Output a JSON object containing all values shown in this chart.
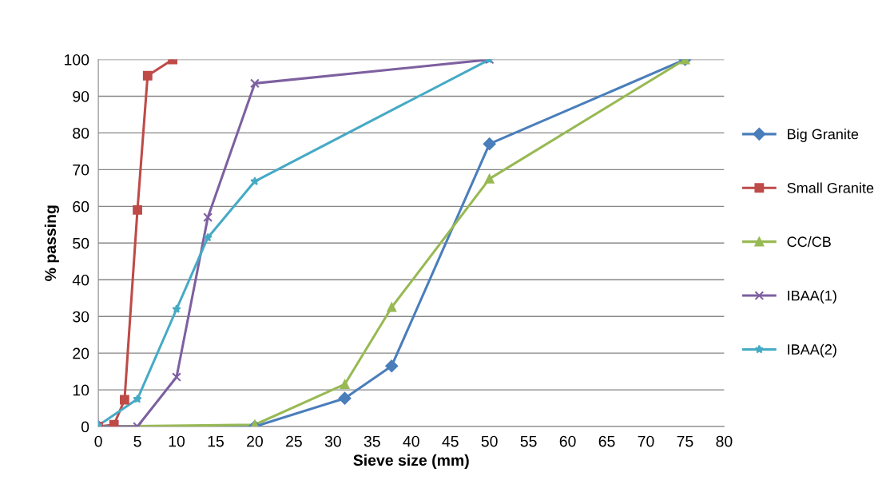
{
  "chart_data": {
    "type": "line",
    "xlabel": "Sieve size (mm)",
    "ylabel": "% passing",
    "xlim": [
      0,
      80
    ],
    "xticks": [
      0,
      5,
      10,
      15,
      20,
      25,
      30,
      35,
      40,
      45,
      50,
      55,
      60,
      65,
      70,
      75,
      80
    ],
    "ylim": [
      0,
      100
    ],
    "yticks": [
      0,
      10,
      20,
      30,
      40,
      50,
      60,
      70,
      80,
      90,
      100
    ],
    "grid": "y",
    "legend": "right",
    "series": [
      {
        "name": "Big Granite",
        "color": "#4a7ebb",
        "marker": "diamond",
        "x": [
          0,
          20,
          31.5,
          37.5,
          50,
          75
        ],
        "values": [
          0,
          0,
          7.7,
          16.5,
          77,
          100
        ]
      },
      {
        "name": "Small Granite",
        "color": "#be4b48",
        "marker": "square",
        "x": [
          0,
          2,
          3.35,
          5,
          6.3,
          9.5
        ],
        "values": [
          0,
          0.5,
          7.3,
          59,
          95.6,
          100
        ]
      },
      {
        "name": "CC/CB",
        "color": "#98b954",
        "marker": "triangle",
        "x": [
          0,
          20,
          31.5,
          37.5,
          50,
          75
        ],
        "values": [
          0,
          0.5,
          11.5,
          32.5,
          67.5,
          100
        ]
      },
      {
        "name": "IBAA(1)",
        "color": "#7d60a0",
        "marker": "cross",
        "x": [
          0,
          5,
          10,
          14,
          20,
          50
        ],
        "values": [
          0,
          0,
          13.5,
          57,
          93.5,
          100
        ]
      },
      {
        "name": "IBAA(2)",
        "color": "#46aac5",
        "marker": "star",
        "x": [
          0,
          5,
          10,
          14,
          20,
          50
        ],
        "values": [
          0.3,
          7.5,
          32,
          51.5,
          66.8,
          100
        ]
      }
    ]
  }
}
